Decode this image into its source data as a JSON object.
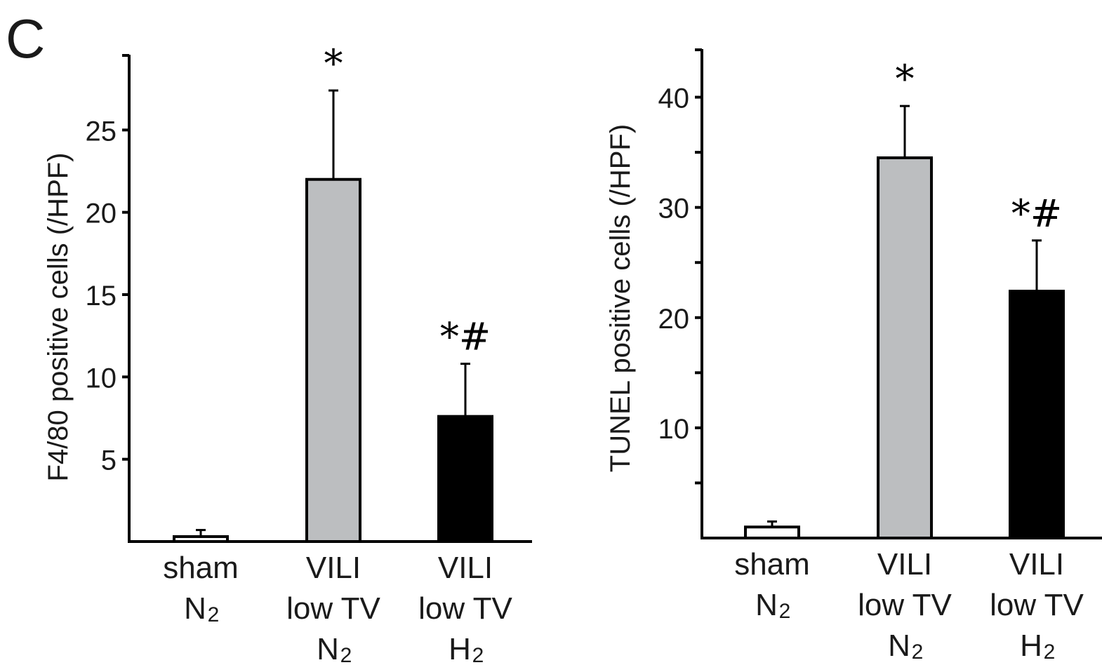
{
  "panel_label": "C",
  "chart_data": [
    {
      "type": "bar",
      "ylabel": "F4/80 positive cells (/HPF)",
      "ylim": [
        0,
        30
      ],
      "y_ticks": [
        5,
        10,
        15,
        20,
        25
      ],
      "y_minor_ticks": [],
      "categories": [
        {
          "lines": [
            "sham",
            "N",
            "2"
          ],
          "label": "sham N2"
        },
        {
          "lines": [
            "VILI",
            "low TV",
            "N",
            "2"
          ],
          "label": "VILI low TV N2"
        },
        {
          "lines": [
            "VILI",
            "low TV",
            "H",
            "2"
          ],
          "label": "VILI low TV H2"
        }
      ],
      "values": [
        0.3,
        22.0,
        7.6
      ],
      "errors": [
        0.4,
        5.4,
        3.2
      ],
      "fills": [
        "#ffffff",
        "#bcbec0",
        "#000000"
      ],
      "annotations": [
        "",
        "*",
        "*#"
      ]
    },
    {
      "type": "bar",
      "ylabel": "TUNEL positive cells (/HPF)",
      "ylim": [
        0,
        45
      ],
      "y_ticks": [
        10,
        20,
        30,
        40
      ],
      "y_minor_ticks": [
        5,
        15,
        25,
        35
      ],
      "categories": [
        {
          "lines": [
            "sham",
            "N",
            "2"
          ],
          "label": "sham N2"
        },
        {
          "lines": [
            "VILI",
            "low TV",
            "N",
            "2"
          ],
          "label": "VILI low TV N2"
        },
        {
          "lines": [
            "VILI",
            "low TV",
            "H",
            "2"
          ],
          "label": "VILI low TV H2"
        }
      ],
      "values": [
        1.0,
        34.5,
        22.4
      ],
      "errors": [
        0.5,
        4.7,
        4.6
      ],
      "fills": [
        "#ffffff",
        "#bcbec0",
        "#000000"
      ],
      "annotations": [
        "",
        "*",
        "*#"
      ]
    }
  ]
}
